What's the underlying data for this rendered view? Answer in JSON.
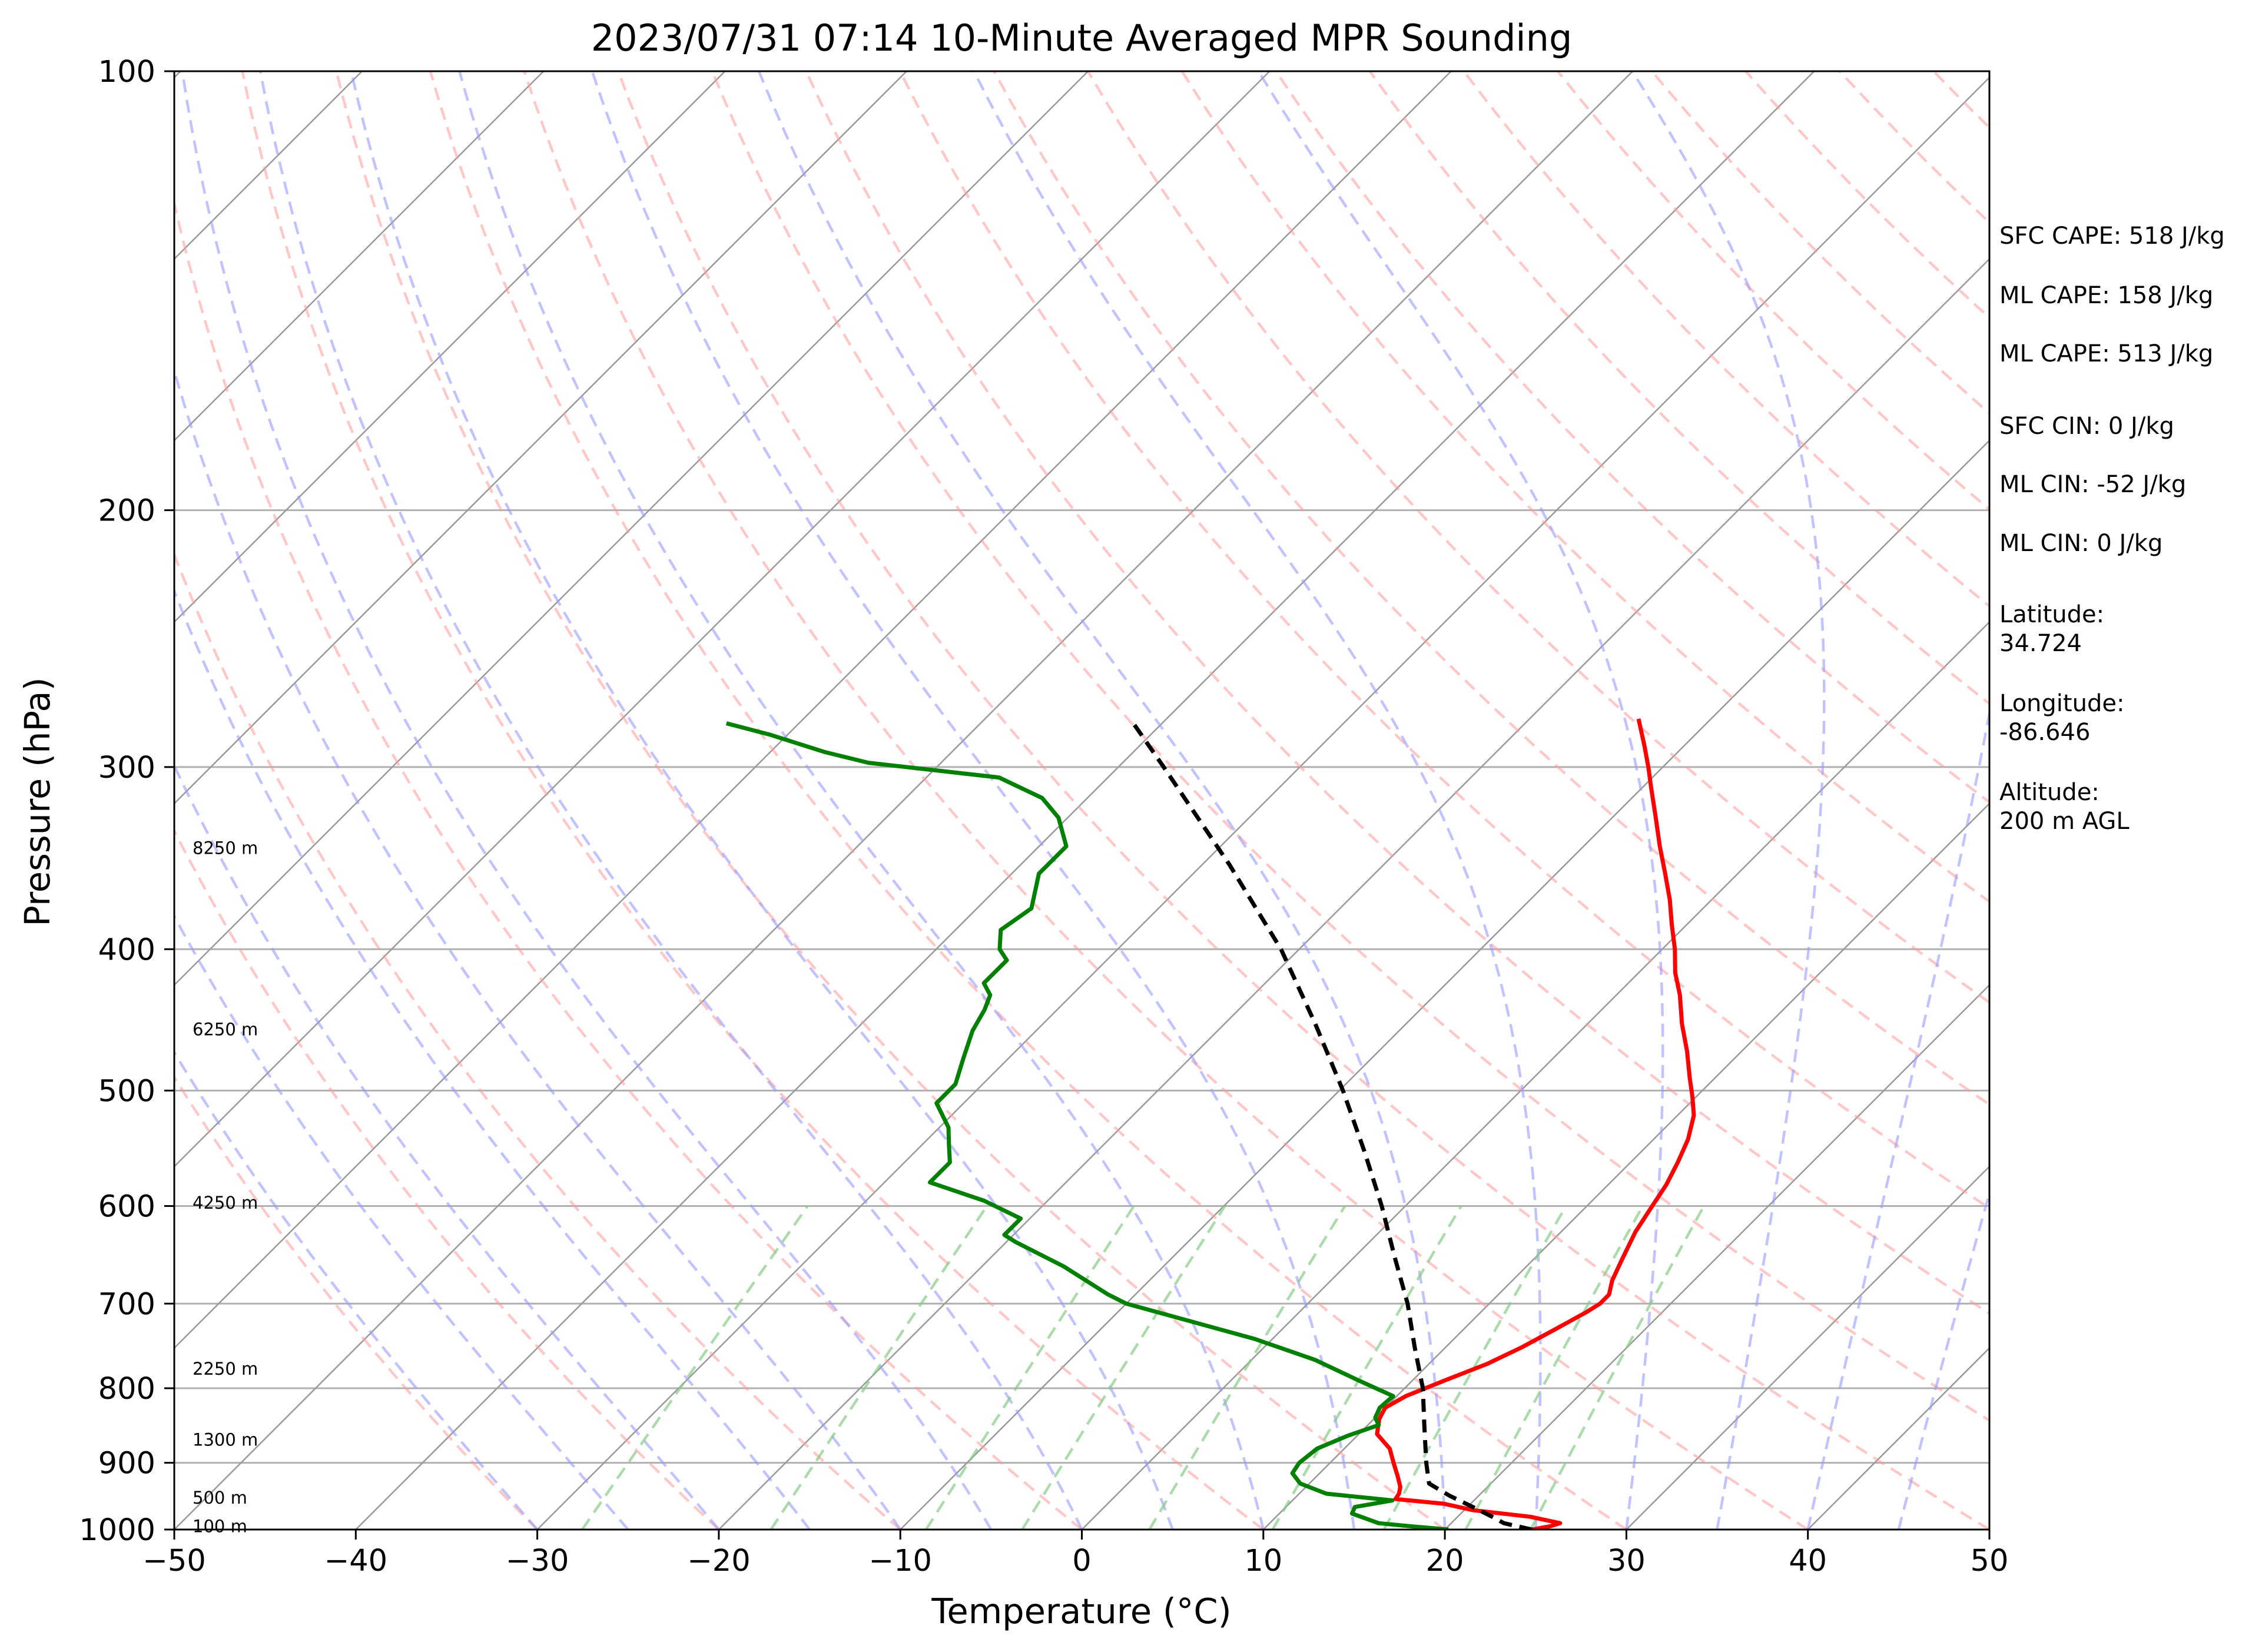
{
  "chart_data": {
    "type": "line",
    "title": "2023/07/31 07:14 10-Minute Averaged MPR Sounding",
    "xlabel": "Temperature (°C)",
    "ylabel": "Pressure (hPa)",
    "xlim": [
      -50,
      50
    ],
    "ylim": [
      1000,
      100
    ],
    "y_scale": "log",
    "skew": true,
    "grid": true,
    "x_ticks": [
      -50,
      -40,
      -30,
      -20,
      -10,
      0,
      10,
      20,
      30,
      40,
      50
    ],
    "x_tick_labels": [
      "−50",
      "−40",
      "−30",
      "−20",
      "−10",
      "0",
      "10",
      "20",
      "30",
      "40",
      "50"
    ],
    "y_ticks": [
      100,
      200,
      300,
      400,
      500,
      600,
      700,
      800,
      900,
      1000
    ],
    "y_tick_labels": [
      "100",
      "200",
      "300",
      "400",
      "500",
      "600",
      "700",
      "800",
      "900",
      "1000"
    ],
    "colors": {
      "temperature": "#ff0000",
      "dewpoint": "#008000",
      "parcel": "#000000",
      "isotherm": "#999999",
      "dry_adiabat": "#ff9999",
      "moist_adiabat": "#9999ff",
      "mixing_ratio": "#88cc88"
    },
    "series": [
      {
        "color": "#ff0000",
        "style": "solid",
        "points": [
          [
            1000,
            24.8
          ],
          [
            995,
            25.6
          ],
          [
            990,
            26.0
          ],
          [
            980,
            24.0
          ],
          [
            970,
            20.5
          ],
          [
            960,
            18.5
          ],
          [
            953,
            15.6
          ],
          [
            945,
            15.5
          ],
          [
            935,
            15.2
          ],
          [
            920,
            14.5
          ],
          [
            900,
            13.5
          ],
          [
            880,
            12.5
          ],
          [
            860,
            11.0
          ],
          [
            840,
            10.3
          ],
          [
            825,
            10.0
          ],
          [
            810,
            10.5
          ],
          [
            790,
            11.8
          ],
          [
            770,
            13.2
          ],
          [
            750,
            14.2
          ],
          [
            730,
            15.0
          ],
          [
            710,
            15.8
          ],
          [
            700,
            16.1
          ],
          [
            690,
            16.1
          ],
          [
            675,
            15.5
          ],
          [
            650,
            14.8
          ],
          [
            625,
            14.1
          ],
          [
            600,
            13.6
          ],
          [
            580,
            13.2
          ],
          [
            560,
            12.6
          ],
          [
            540,
            11.9
          ],
          [
            520,
            10.9
          ],
          [
            505,
            9.8
          ],
          [
            490,
            8.6
          ],
          [
            470,
            7.0
          ],
          [
            450,
            5.2
          ],
          [
            430,
            3.5
          ],
          [
            415,
            2.0
          ],
          [
            400,
            0.7
          ],
          [
            385,
            -0.8
          ],
          [
            370,
            -2.3
          ],
          [
            355,
            -4.0
          ],
          [
            340,
            -5.8
          ],
          [
            325,
            -7.6
          ],
          [
            310,
            -9.5
          ],
          [
            300,
            -10.8
          ],
          [
            290,
            -12.2
          ],
          [
            278,
            -14.0
          ]
        ]
      },
      {
        "color": "#008000",
        "style": "solid",
        "points": [
          [
            1000,
            20.2
          ],
          [
            995,
            18.0
          ],
          [
            990,
            16.0
          ],
          [
            975,
            14.0
          ],
          [
            965,
            13.8
          ],
          [
            955,
            15.5
          ],
          [
            945,
            11.5
          ],
          [
            930,
            9.5
          ],
          [
            915,
            8.5
          ],
          [
            900,
            8.3
          ],
          [
            880,
            8.5
          ],
          [
            862,
            9.5
          ],
          [
            848,
            10.6
          ],
          [
            838,
            10.0
          ],
          [
            825,
            9.7
          ],
          [
            810,
            9.8
          ],
          [
            790,
            7.0
          ],
          [
            765,
            3.5
          ],
          [
            740,
            -1.0
          ],
          [
            700,
            -10.0
          ],
          [
            690,
            -11.5
          ],
          [
            660,
            -15.5
          ],
          [
            635,
            -19.5
          ],
          [
            628,
            -20.5
          ],
          [
            612,
            -20.5
          ],
          [
            595,
            -23.5
          ],
          [
            578,
            -27.5
          ],
          [
            560,
            -27.5
          ],
          [
            545,
            -28.5
          ],
          [
            530,
            -29.5
          ],
          [
            510,
            -31.5
          ],
          [
            495,
            -31.5
          ],
          [
            475,
            -32.5
          ],
          [
            455,
            -33.5
          ],
          [
            440,
            -34.0
          ],
          [
            430,
            -34.5
          ],
          [
            422,
            -35.5
          ],
          [
            407,
            -35.5
          ],
          [
            400,
            -36.5
          ],
          [
            388,
            -37.5
          ],
          [
            375,
            -37.0
          ],
          [
            355,
            -38.5
          ],
          [
            340,
            -38.5
          ],
          [
            325,
            -40.5
          ],
          [
            315,
            -42.5
          ],
          [
            305,
            -46.0
          ],
          [
            298,
            -54.0
          ],
          [
            293,
            -57.0
          ],
          [
            285,
            -61.0
          ],
          [
            280,
            -64.0
          ]
        ]
      },
      {
        "color": "#000000",
        "style": "dashed",
        "points": [
          [
            1000,
            24.8
          ],
          [
            990,
            22.9
          ],
          [
            980,
            21.9
          ],
          [
            965,
            20.3
          ],
          [
            948,
            18.4
          ],
          [
            930,
            16.6
          ],
          [
            900,
            15.3
          ],
          [
            850,
            13.2
          ],
          [
            800,
            11.0
          ],
          [
            750,
            8.3
          ],
          [
            700,
            5.5
          ],
          [
            650,
            2.2
          ],
          [
            600,
            -1.3
          ],
          [
            550,
            -5.3
          ],
          [
            500,
            -9.8
          ],
          [
            450,
            -15.0
          ],
          [
            400,
            -21.0
          ],
          [
            350,
            -28.5
          ],
          [
            300,
            -37.5
          ],
          [
            278,
            -42.0
          ]
        ]
      }
    ],
    "height_labels": [
      {
        "text": "100 m",
        "pressure": 995
      },
      {
        "text": "500 m",
        "pressure": 951
      },
      {
        "text": "1300 m",
        "pressure": 868
      },
      {
        "text": "2250 m",
        "pressure": 776
      },
      {
        "text": "4250 m",
        "pressure": 597
      },
      {
        "text": "6250 m",
        "pressure": 454
      },
      {
        "text": "8250 m",
        "pressure": 341
      }
    ]
  },
  "info_panel": {
    "sfc_cape": "SFC CAPE: 518 J/kg",
    "ml_cape_1": "ML CAPE: 158 J/kg",
    "ml_cape_2": "ML CAPE: 513 J/kg",
    "sfc_cin": "SFC CIN: 0 J/kg",
    "ml_cin_1": "ML CIN: -52 J/kg",
    "ml_cin_2": "ML CIN: 0 J/kg",
    "latitude_label": "Latitude:",
    "latitude_value": "34.724",
    "longitude_label": "Longitude:",
    "longitude_value": "-86.646",
    "altitude_label": "Altitude:",
    "altitude_value": "200 m AGL"
  }
}
